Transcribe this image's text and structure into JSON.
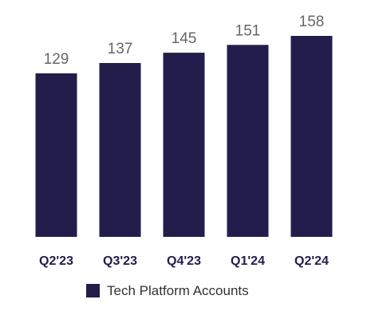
{
  "chart_data": {
    "type": "bar",
    "categories": [
      "Q2'23",
      "Q3'23",
      "Q4'23",
      "Q1'24",
      "Q2'24"
    ],
    "series": [
      {
        "name": "Tech Platform Accounts",
        "values": [
          129,
          137,
          145,
          151,
          158
        ],
        "color": "#221d4b"
      }
    ],
    "data_labels": [
      "129",
      "137",
      "145",
      "151",
      "158"
    ],
    "grid": false,
    "legend_position": "bottom-center",
    "title": "",
    "xlabel": "",
    "ylabel": ""
  }
}
